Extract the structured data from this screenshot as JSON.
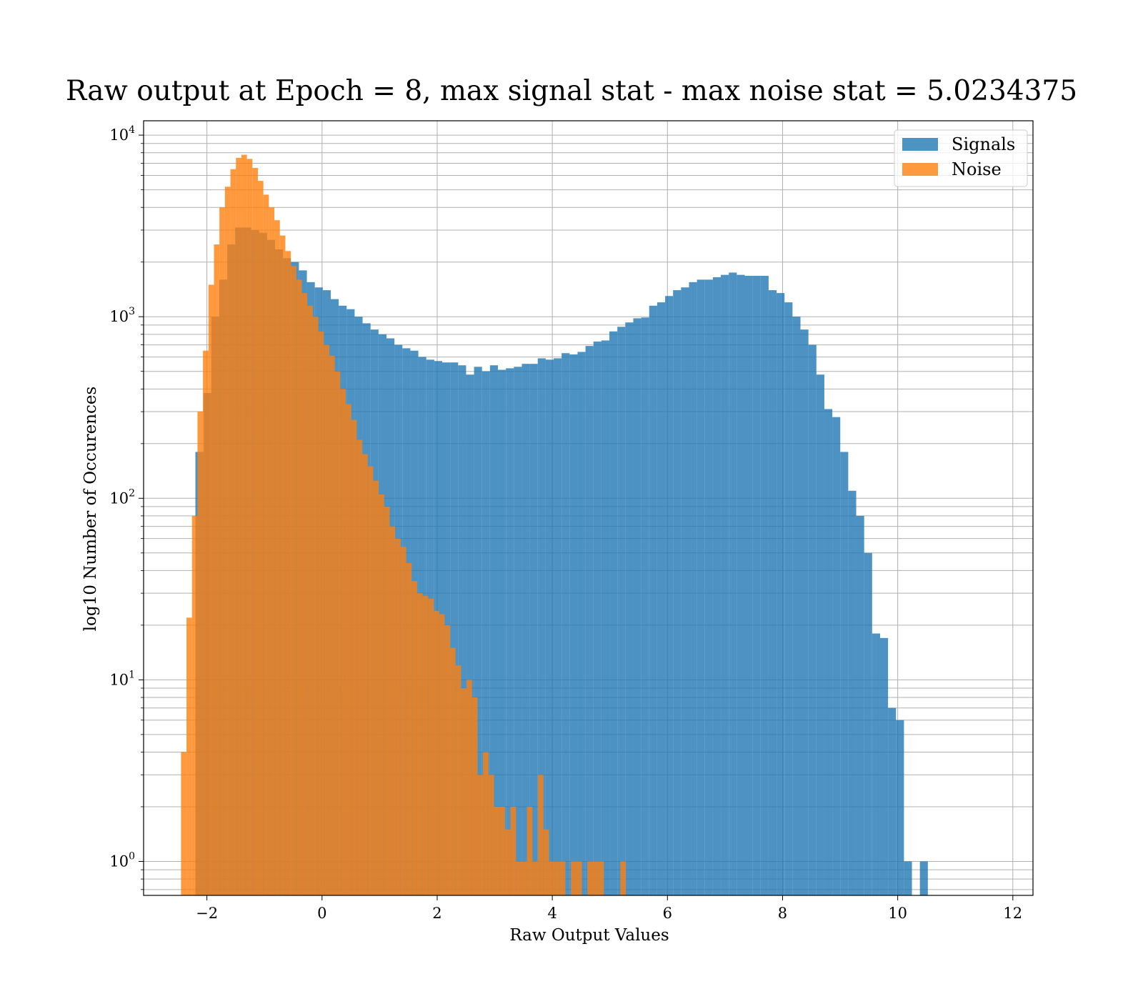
{
  "chart_data": {
    "type": "bar",
    "title": "Raw output at Epoch = 8, max signal stat - max noise stat = 5.0234375",
    "xlabel": "Raw Output Values",
    "ylabel": "log10 Number of Occurences",
    "xlim": [
      -3.1,
      12.35
    ],
    "ylim": [
      0.65,
      12000
    ],
    "yscale": "log",
    "grid": true,
    "legend_position": "top-right",
    "x_ticks": [
      {
        "value": -2,
        "label": "−2"
      },
      {
        "value": 0,
        "label": "0"
      },
      {
        "value": 2,
        "label": "2"
      },
      {
        "value": 4,
        "label": "4"
      },
      {
        "value": 6,
        "label": "6"
      },
      {
        "value": 8,
        "label": "8"
      },
      {
        "value": 10,
        "label": "10"
      },
      {
        "value": 12,
        "label": "12"
      }
    ],
    "y_ticks": [
      {
        "value": 1,
        "base": "10",
        "exp": "0"
      },
      {
        "value": 10,
        "base": "10",
        "exp": "1"
      },
      {
        "value": 100,
        "base": "10",
        "exp": "2"
      },
      {
        "value": 1000,
        "base": "10",
        "exp": "3"
      },
      {
        "value": 10000,
        "base": "10",
        "exp": "4"
      }
    ],
    "series": [
      {
        "name": "Signals",
        "color": "#1f77b4",
        "opacity": 0.8,
        "bin_start": -2.2,
        "bin_width": 0.1383,
        "values": [
          180,
          380,
          1000,
          1600,
          2500,
          3100,
          3100,
          3000,
          2900,
          2650,
          2350,
          2100,
          2000,
          1800,
          1550,
          1450,
          1400,
          1250,
          1150,
          1100,
          1000,
          920,
          850,
          800,
          760,
          700,
          670,
          650,
          600,
          580,
          570,
          560,
          560,
          540,
          480,
          530,
          500,
          540,
          510,
          520,
          530,
          550,
          550,
          590,
          580,
          590,
          630,
          620,
          640,
          690,
          730,
          740,
          830,
          880,
          930,
          980,
          990,
          1150,
          1200,
          1300,
          1400,
          1450,
          1550,
          1600,
          1600,
          1650,
          1700,
          1750,
          1700,
          1680,
          1680,
          1680,
          1400,
          1350,
          1200,
          1000,
          850,
          700,
          480,
          310,
          280,
          180,
          110,
          80,
          50,
          18,
          17,
          7,
          6,
          1,
          0,
          1
        ]
      },
      {
        "name": "Noise",
        "color": "#ff7f0e",
        "opacity": 0.8,
        "bin_start": -2.45,
        "bin_width": 0.0954,
        "values": [
          4,
          22,
          80,
          300,
          650,
          1500,
          2500,
          4000,
          5200,
          6500,
          7500,
          7800,
          7400,
          6600,
          5600,
          4700,
          4000,
          3400,
          2800,
          2300,
          1900,
          1600,
          1350,
          1150,
          1000,
          830,
          700,
          610,
          500,
          400,
          330,
          270,
          210,
          175,
          150,
          125,
          105,
          90,
          70,
          60,
          54,
          44,
          35,
          30,
          29,
          28,
          24,
          23,
          20,
          15,
          12,
          9,
          10,
          8,
          3,
          4,
          3,
          2,
          2,
          1.5,
          2,
          1,
          1,
          2,
          1,
          3,
          1.5,
          1,
          1,
          1,
          0,
          1,
          1,
          0,
          1,
          1,
          1,
          0,
          0,
          0,
          1
        ]
      }
    ]
  }
}
